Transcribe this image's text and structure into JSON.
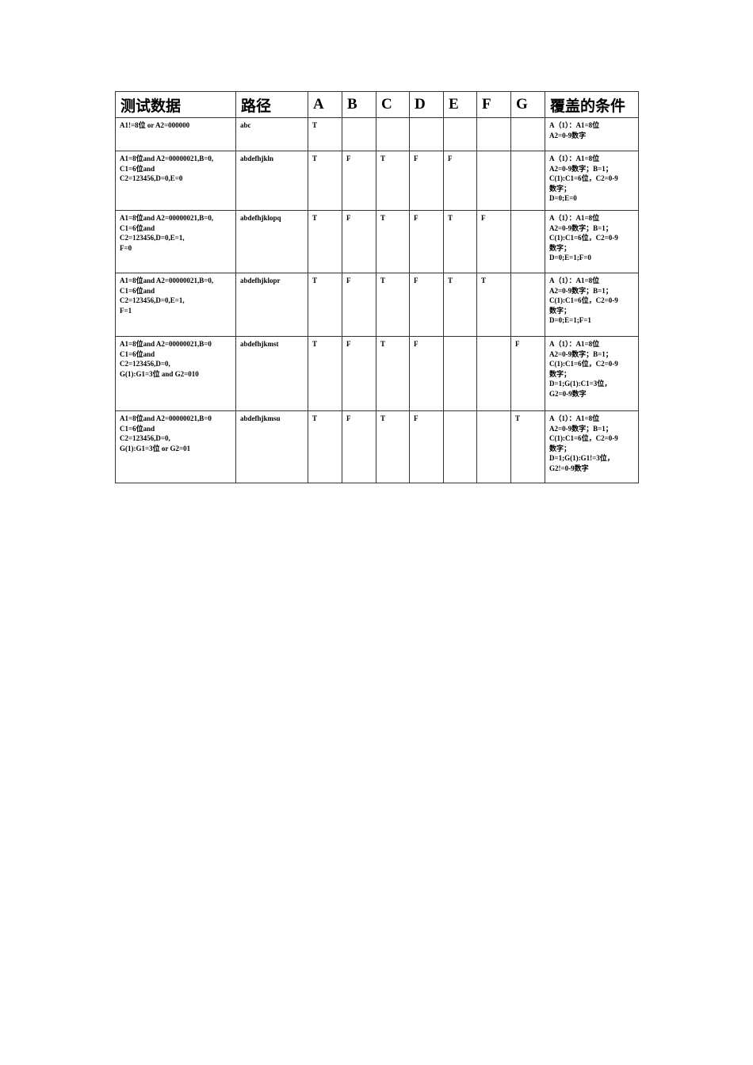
{
  "headers": [
    "测试数据",
    "路径",
    "A",
    "B",
    "C",
    "D",
    "E",
    "F",
    "G",
    "覆盖的条件"
  ],
  "rows": [
    {
      "data": "A1!=8位 or A2=000000",
      "path": "abc",
      "v": [
        "T",
        "",
        "",
        "",
        "",
        "",
        ""
      ],
      "cond": "A（1）：A1=8位\nA2=0-9数字"
    },
    {
      "data": "A1=8位and A2=00000021,B=0,\nC1=6位and\nC2=123456,D=0,E=0",
      "path": "abdefhjkln",
      "v": [
        "T",
        "F",
        "T",
        "F",
        "F",
        "",
        ""
      ],
      "cond": "A（1）：A1=8位\nA2=0-9数字；B=1；\nC(1):C1=6位，C2=0-9\n数字；\nD=0;E=0"
    },
    {
      "data": "A1=8位and A2=00000021,B=0,\nC1=6位and\nC2=123456,D=0,E=1,\nF=0",
      "path": "abdefhjklopq",
      "v": [
        "T",
        "F",
        "T",
        "F",
        "T",
        "F",
        ""
      ],
      "cond": "A（1）：A1=8位\nA2=0-9数字；B=1；\nC(1):C1=6位，C2=0-9\n数字；\nD=0;E=1;F=0"
    },
    {
      "data": "A1=8位and A2=00000021,B=0,\nC1=6位and\nC2=123456,D=0,E=1,\nF=1",
      "path": "abdefhjklopr",
      "v": [
        "T",
        "F",
        "T",
        "F",
        "T",
        "T",
        ""
      ],
      "cond": "A（1）：A1=8位\nA2=0-9数字；B=1；\nC(1):C1=6位，C2=0-9\n数字；\nD=0;E=1;F=1"
    },
    {
      "data": "A1=8位and A2=00000021,B=0\nC1=6位and\nC2=123456,D=0,\nG(1):G1=3位 and G2=010",
      "path": "abdefhjkmst",
      "v": [
        "T",
        "F",
        "T",
        "F",
        "",
        "",
        "F"
      ],
      "cond": "A（1）：A1=8位\nA2=0-9数字；B=1；\nC(1):C1=6位，C2=0-9\n数字；\nD=1;G(1):C1=3位，\nG2=0-9数字"
    },
    {
      "data": "A1=8位and A2=00000021,B=0\nC1=6位and\nC2=123456,D=0,\nG(1):G1=3位 or G2=01",
      "path": "abdefhjkmsu",
      "v": [
        "T",
        "F",
        "T",
        "F",
        "",
        "",
        "T"
      ],
      "cond": "A（1）：A1=8位\nA2=0-9数字；B=1；\nC(1):C1=6位，C2=0-9\n数字；\nD=1;G(1):G1!=3位，\nG2!=0-9数字"
    }
  ]
}
